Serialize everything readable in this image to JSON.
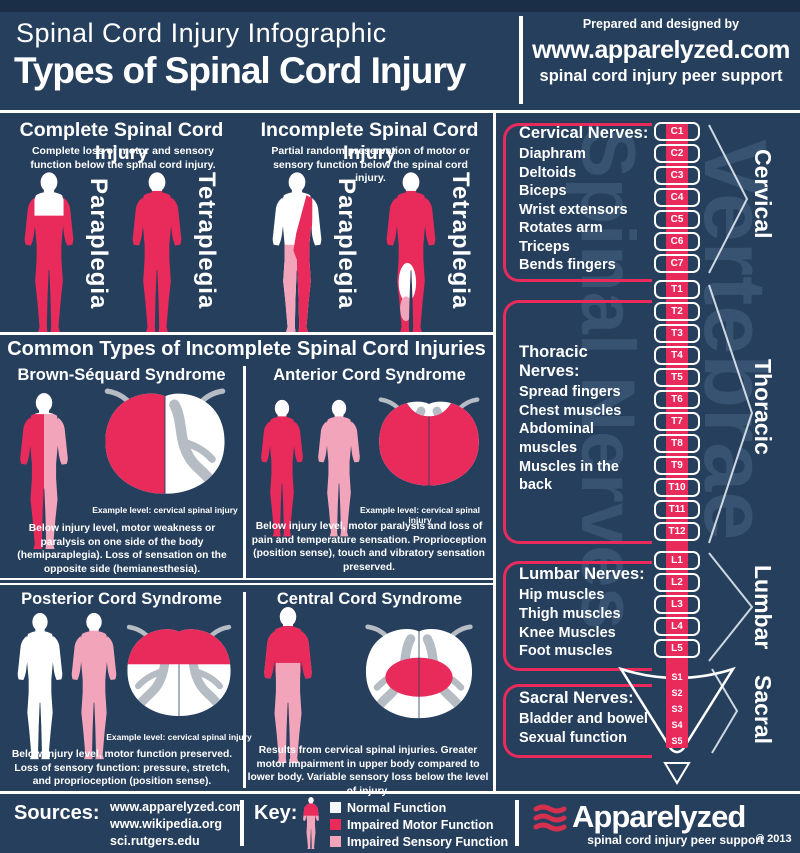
{
  "colors": {
    "background": "#263f5d",
    "header_strip": "#1b2e48",
    "accent_pink": "#e92b5c",
    "light_pink": "#f2a4ba",
    "gray_matter": "#b6bcc4",
    "watermark": "rgba(155,185,215,0.16)"
  },
  "header": {
    "kicker": "Spinal Cord Injury Infographic",
    "title": "Types of Spinal Cord Injury",
    "prepared": "Prepared and designed by",
    "site": "www.apparelyzed.com",
    "support": "spinal cord injury peer support"
  },
  "sections": {
    "complete": {
      "title": "Complete Spinal Cord Injury",
      "desc": "Complete loss of motor and sensory function below the spinal cord injury.",
      "figures": [
        {
          "label": "Paraplegia"
        },
        {
          "label": "Tetraplegia"
        }
      ]
    },
    "incomplete": {
      "title": "Incomplete Spinal Cord Injury",
      "desc": "Partial random preservation of motor or sensory function below the spinal cord injury.",
      "figures": [
        {
          "label": "Paraplegia"
        },
        {
          "label": "Tetraplegia"
        }
      ]
    },
    "common_title": "Common Types of Incomplete Spinal Cord Injuries",
    "syndromes": [
      {
        "name": "Brown-Séquard Syndrome",
        "example": "Example level: cervical spinal injury",
        "desc": "Below injury level, motor weakness or paralysis on one side of the body (hemiparaplegia). Loss of sensation on the opposite side (hemianesthesia)."
      },
      {
        "name": "Anterior Cord Syndrome",
        "example": "Example level: cervical spinal injury",
        "desc": "Below injury level, motor paralysis and loss of pain and temperature sensation.  Proprioception (position sense), touch and vibratory sensation preserved."
      },
      {
        "name": "Posterior Cord Syndrome",
        "example": "Example level: cervical spinal injury",
        "desc": "Below injury level, motor function preserved. Loss of sensory function:  pressure, stretch, and proprioception (position sense)."
      },
      {
        "name": "Central Cord Syndrome",
        "desc": "Results from cervical spinal injuries. Greater motor impairment in upper body compared to lower body. Variable sensory loss below the level of injury."
      }
    ]
  },
  "spine": {
    "watermark_left": "Spinal Nerves",
    "watermark_right": "Vertebrae",
    "groups": [
      {
        "region": "Cervical",
        "title": "Cervical Nerves:",
        "items": [
          "Diaphram",
          "Deltoids",
          "Biceps",
          "Wrist extensors",
          "Rotates arm",
          "Triceps",
          "Bends fingers"
        ],
        "vertebrae": [
          "C1",
          "C2",
          "C3",
          "C4",
          "C5",
          "C6",
          "C7"
        ]
      },
      {
        "region": "Thoracic",
        "title": "Thoracic Nerves:",
        "items": [
          "Spread fingers",
          "Chest muscles",
          "Abdominal muscles",
          "Muscles in the back"
        ],
        "vertebrae": [
          "T1",
          "T2",
          "T3",
          "T4",
          "T5",
          "T6",
          "T7",
          "T8",
          "T9",
          "T10",
          "T11",
          "T12"
        ]
      },
      {
        "region": "Lumbar",
        "title": "Lumbar Nerves:",
        "items": [
          "Hip muscles",
          "Thigh muscles",
          "Knee Muscles",
          "Foot muscles"
        ],
        "vertebrae": [
          "L1",
          "L2",
          "L3",
          "L4",
          "L5"
        ]
      },
      {
        "region": "Sacral",
        "title": "Sacral Nerves:",
        "items": [
          "Bladder and bowel",
          "Sexual function"
        ],
        "vertebrae": [
          "S1",
          "S2",
          "S3",
          "S4",
          "S5"
        ]
      }
    ]
  },
  "footer": {
    "sources_label": "Sources:",
    "sources": [
      "www.apparelyzed.com",
      "www.wikipedia.org",
      "sci.rutgers.edu"
    ],
    "key_label": "Key:",
    "legend": [
      {
        "label": "Normal Function",
        "color": "#f4f6f8"
      },
      {
        "label": "Impaired Motor Function",
        "color": "#e92b5c"
      },
      {
        "label": "Impaired Sensory Function",
        "color": "#f2a4ba"
      }
    ],
    "brand": "Apparelyzed",
    "brand_sub": "spinal cord injury peer support",
    "copyright": "© 2013"
  }
}
